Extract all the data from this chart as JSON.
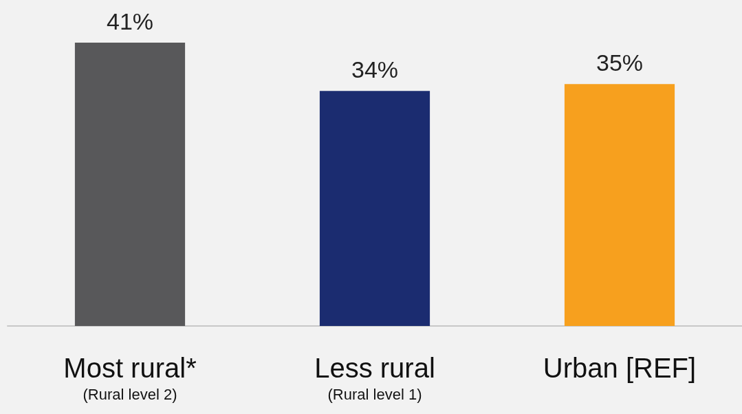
{
  "chart_data": {
    "type": "bar",
    "categories": [
      "Most rural*\n(Rural level 2)",
      "Less rural\n(Rural level 1)",
      "Urban [REF]"
    ],
    "values": [
      41,
      34,
      35
    ],
    "colors": [
      "#58585a",
      "#1b2c70",
      "#f7a01e"
    ],
    "value_labels": [
      "41%",
      "34%",
      "35%"
    ]
  }
}
